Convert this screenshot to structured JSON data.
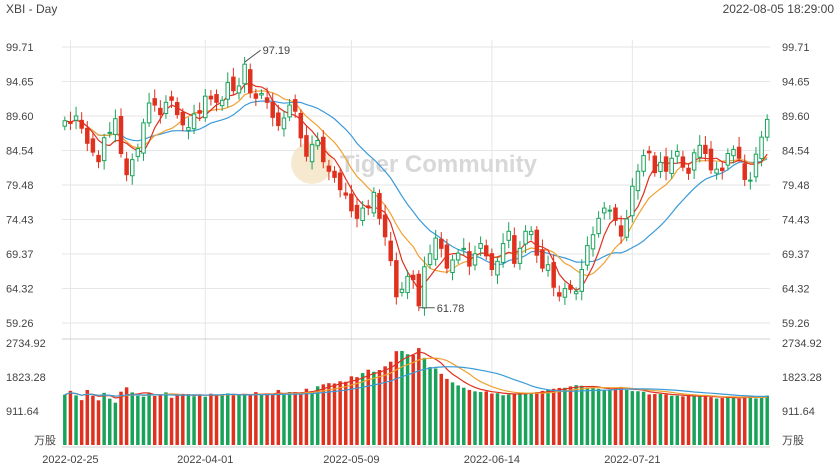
{
  "header": {
    "symbol_period": "XBI - Day",
    "timestamp": "2022-08-05 18:29:00"
  },
  "watermark": "Tiger Community",
  "colors": {
    "up": "#19a35a",
    "down": "#e0301e",
    "ma5": "#e0301e",
    "ma10": "#f0a030",
    "ma20": "#3a9ad9",
    "grid": "#e6e6e6"
  },
  "chart_data": [
    {
      "type": "candlestick",
      "title": "XBI - Day",
      "y_ticks": [
        "99.71",
        "94.65",
        "89.60",
        "84.54",
        "79.48",
        "74.43",
        "69.37",
        "64.32",
        "59.26"
      ],
      "ylim": [
        59.26,
        99.71
      ],
      "x_ticks": [
        "2022-02-25",
        "2022-04-01",
        "2022-05-09",
        "2022-06-14",
        "2022-07-21"
      ],
      "annotations": [
        {
          "label": "97.19",
          "value": 97.19,
          "bar_index": 32
        },
        {
          "label": "61.78",
          "value": 61.78,
          "bar_index": 63
        }
      ],
      "moving_averages": [
        "MA5",
        "MA10",
        "MA20"
      ],
      "closes": [
        88.9,
        88.5,
        89.6,
        87.8,
        85.6,
        84.3,
        82.9,
        86.4,
        87.2,
        89.2,
        84.1,
        81.0,
        83.2,
        84.8,
        88.6,
        91.5,
        91.2,
        89.8,
        91.6,
        91.9,
        89.8,
        88.3,
        87.9,
        89.9,
        90.0,
        92.5,
        92.1,
        91.6,
        91.9,
        94.5,
        93.3,
        94.0,
        97.19,
        93.0,
        92.2,
        92.9,
        91.6,
        89.4,
        88.2,
        89.3,
        91.2,
        90.3,
        86.4,
        83.7,
        85.4,
        86.0,
        82.9,
        81.5,
        80.6,
        78.8,
        78.0,
        75.7,
        74.6,
        76.1,
        76.2,
        78.4,
        74.6,
        71.9,
        68.4,
        63.1,
        64.2,
        66.1,
        65.6,
        61.78,
        67.5,
        69.4,
        71.7,
        70.2,
        67.3,
        68.5,
        69.5,
        70.2,
        67.6,
        69.4,
        70.9,
        69.1,
        67.1,
        68.3,
        70.9,
        72.7,
        68.0,
        70.2,
        72.7,
        72.7,
        69.2,
        67.3,
        67.8,
        64.5,
        63.2,
        64.3,
        64.2,
        63.9,
        67.1,
        70.6,
        72.2,
        74.6,
        76.1,
        75.8,
        74.3,
        72.0,
        74.5,
        79.3,
        81.5,
        83.8,
        84.2,
        81.3,
        82.8,
        81.5,
        83.4,
        84.4,
        82.1,
        81.2,
        84.2,
        85.3,
        84.1,
        81.7,
        81.8,
        81.6,
        84.1,
        84.7,
        83.4,
        80.3,
        80.2,
        84.0,
        86.5,
        89.1
      ],
      "volume": {
        "y_ticks": [
          "2734.92",
          "1823.28",
          "911.64"
        ],
        "ylim": [
          0,
          2734.92
        ],
        "unit_label": "万股",
        "values": [
          1350,
          1452,
          1330,
          1203,
          1475,
          1322,
          1198,
          1398,
          1243,
          1134,
          1429,
          1546,
          1410,
          1320,
          1296,
          1402,
          1315,
          1338,
          1411,
          1265,
          1335,
          1371,
          1361,
          1307,
          1354,
          1294,
          1375,
          1336,
          1359,
          1383,
          1334,
          1348,
          1354,
          1339,
          1418,
          1365,
          1375,
          1340,
          1474,
          1348,
          1418,
          1420,
          1356,
          1509,
          1445,
          1574,
          1626,
          1658,
          1649,
          1709,
          1695,
          1842,
          1820,
          1928,
          2020,
          1965,
          2011,
          2109,
          2233,
          2516,
          2521,
          2433,
          2413,
          2598,
          2336,
          2089,
          2052,
          1908,
          1772,
          1678,
          1597,
          1536,
          1477,
          1438,
          1420,
          1435,
          1380,
          1389,
          1333,
          1356,
          1375,
          1400,
          1403,
          1396,
          1415,
          1450,
          1478,
          1508,
          1531,
          1534,
          1571,
          1604,
          1588,
          1534,
          1541,
          1507,
          1477,
          1486,
          1524,
          1559,
          1478,
          1445,
          1441,
          1429,
          1356,
          1365,
          1367,
          1359,
          1318,
          1322,
          1305,
          1321,
          1313,
          1300,
          1320,
          1286,
          1246,
          1259,
          1278,
          1287,
          1243,
          1307,
          1301,
          1250,
          1300,
          1325
        ]
      }
    }
  ]
}
